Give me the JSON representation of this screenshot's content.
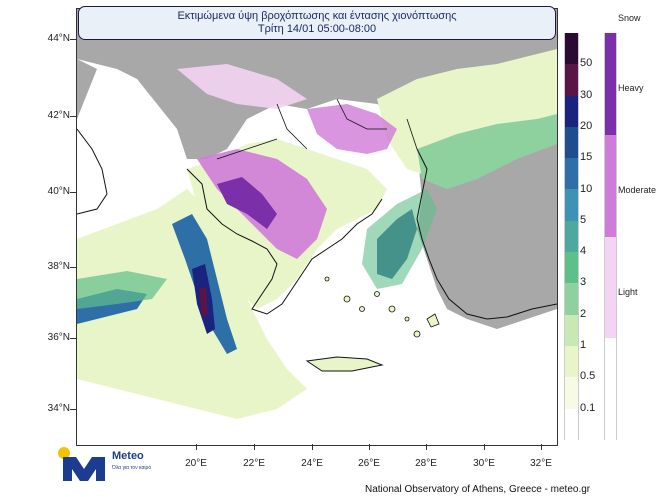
{
  "title": {
    "line1": "Εκτιμώμενα ύψη βροχόπτωσης και έντασης χιονόπτωσης",
    "line2": "Τρίτη 14/01 05:00-08:00"
  },
  "axes": {
    "lat_labels": [
      "44°N",
      "42°N",
      "40°N",
      "38°N",
      "36°N",
      "34°N"
    ],
    "lon_labels": [
      "20°E",
      "22°E",
      "24°E",
      "26°E",
      "28°E",
      "30°E",
      "32°E"
    ]
  },
  "rain_legend": {
    "labels": [
      "50",
      "30",
      "20",
      "15",
      "10",
      "5",
      "4",
      "3",
      "2",
      "1",
      "0.5",
      "0.1"
    ],
    "colors": [
      "#2b0a33",
      "#5a1448",
      "#1a237e",
      "#1f4e8c",
      "#2f6fa8",
      "#3e93b5",
      "#4fa8a0",
      "#5fbf8a",
      "#8fd19e",
      "#c9e9b4",
      "#e8f5c8",
      "#f7fbe6",
      "#ffffff"
    ]
  },
  "snow_legend": {
    "title": "Snow",
    "labels": [
      "Heavy",
      "Moderate",
      "Light"
    ],
    "colors": [
      "#7b2fa8",
      "#cf7bd8",
      "#f3d4f2",
      "#ffffff"
    ]
  },
  "colors": {
    "land": "#a8a8a8",
    "sea": "#ffffff",
    "coast": "#111111"
  },
  "logo": {
    "name": "Meteo",
    "tagline": "Όλα για τον καιρό"
  },
  "credit": "National Observatory of Athens, Greece - meteo.gr"
}
